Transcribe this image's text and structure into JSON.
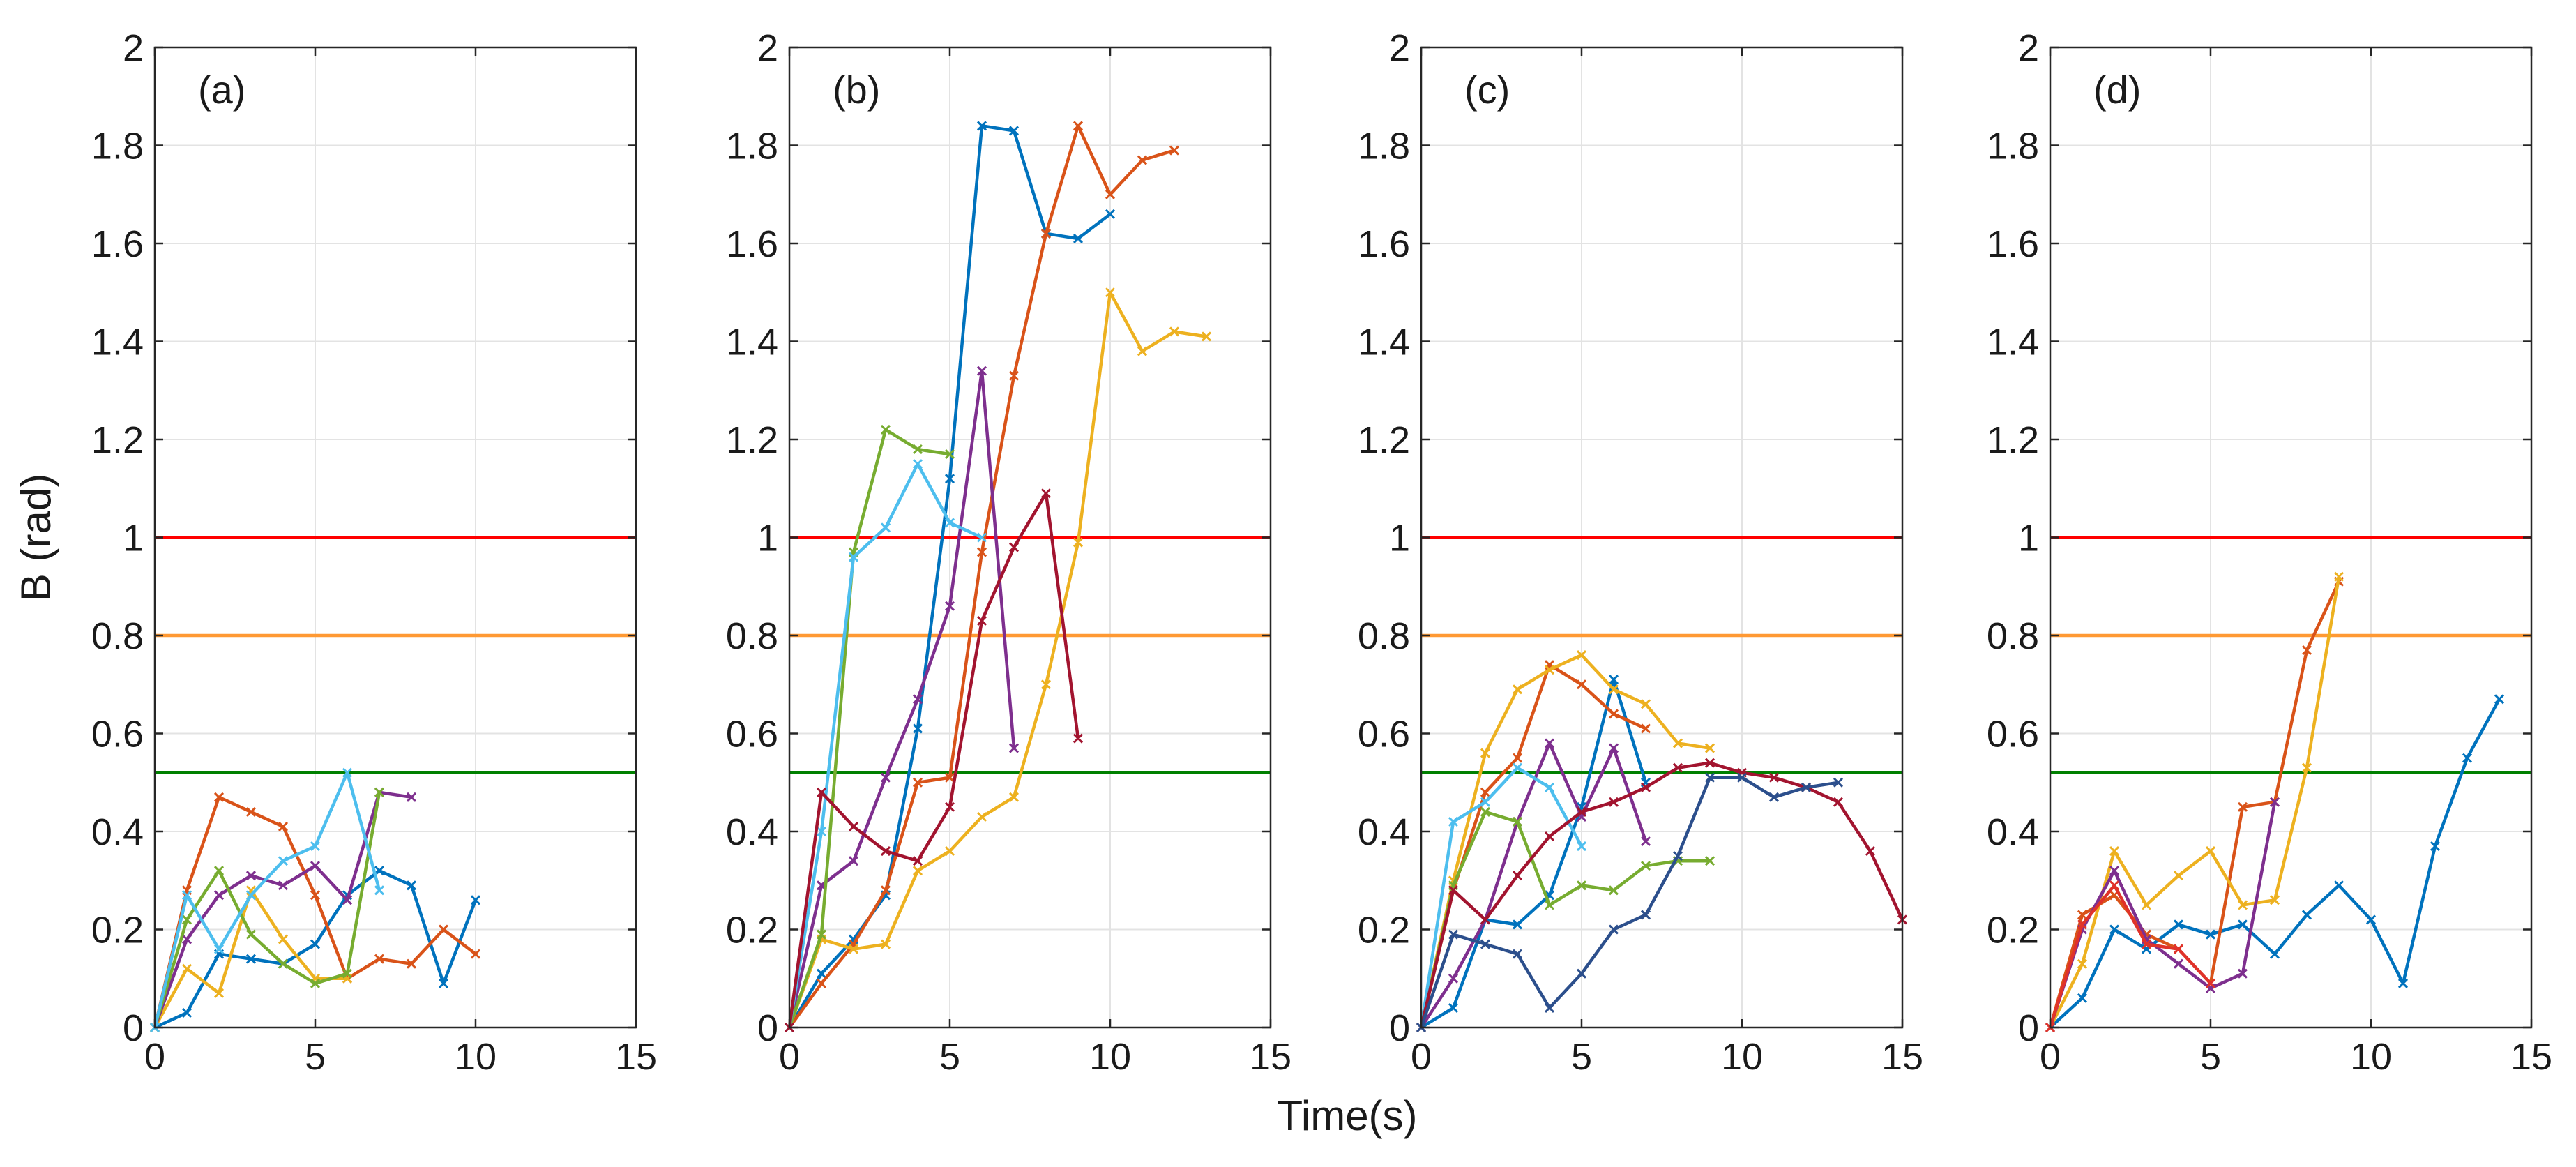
{
  "figure": {
    "ylabel": "B (rad)",
    "xlabel": "Time(s)"
  },
  "chart_data": [
    {
      "type": "line",
      "panel": "(a)",
      "xlim": [
        0,
        15
      ],
      "ylim": [
        0,
        2
      ],
      "xticks": [
        "0",
        "5",
        "10",
        "15"
      ],
      "yticks": [
        "0",
        "0.2",
        "0.4",
        "0.6",
        "0.8",
        "1",
        "1.2",
        "1.4",
        "1.6",
        "1.8",
        "2"
      ],
      "grid": true,
      "thresholds": [
        {
          "name": "red-threshold",
          "value": 1.0,
          "color": "#ff0000"
        },
        {
          "name": "orange-threshold",
          "value": 0.8,
          "color": "#ff9933"
        },
        {
          "name": "green-threshold",
          "value": 0.52,
          "color": "#008000"
        }
      ],
      "series": [
        {
          "name": "blue",
          "color": "#0072bd",
          "x": [
            0,
            1,
            2,
            3,
            4,
            5,
            6,
            7,
            8,
            9,
            10
          ],
          "y": [
            0,
            0.03,
            0.15,
            0.14,
            0.13,
            0.17,
            0.27,
            0.32,
            0.29,
            0.09,
            0.26
          ]
        },
        {
          "name": "orange",
          "color": "#d95319",
          "x": [
            0,
            1,
            2,
            3,
            4,
            5,
            6,
            7,
            8,
            9,
            10
          ],
          "y": [
            0,
            0.28,
            0.47,
            0.44,
            0.41,
            0.27,
            0.1,
            0.14,
            0.13,
            0.2,
            0.15
          ]
        },
        {
          "name": "yellow",
          "color": "#edb120",
          "x": [
            0,
            1,
            2,
            3,
            4,
            5,
            6
          ],
          "y": [
            0,
            0.12,
            0.07,
            0.28,
            0.18,
            0.1,
            0.1
          ]
        },
        {
          "name": "purple",
          "color": "#7e2f8e",
          "x": [
            0,
            1,
            2,
            3,
            4,
            5,
            6,
            7,
            8
          ],
          "y": [
            0,
            0.18,
            0.27,
            0.31,
            0.29,
            0.33,
            0.26,
            0.48,
            0.47
          ]
        },
        {
          "name": "green",
          "color": "#77ac30",
          "x": [
            0,
            1,
            2,
            3,
            4,
            5,
            6,
            7
          ],
          "y": [
            0,
            0.22,
            0.32,
            0.19,
            0.13,
            0.09,
            0.11,
            0.48
          ]
        },
        {
          "name": "cyan",
          "color": "#4dbeee",
          "x": [
            0,
            1,
            2,
            3,
            4,
            5,
            6,
            7
          ],
          "y": [
            0,
            0.27,
            0.16,
            0.27,
            0.34,
            0.37,
            0.52,
            0.28
          ]
        }
      ]
    },
    {
      "type": "line",
      "panel": "(b)",
      "xlim": [
        0,
        15
      ],
      "ylim": [
        0,
        2
      ],
      "xticks": [
        "0",
        "5",
        "10",
        "15"
      ],
      "yticks": [
        "0",
        "0.2",
        "0.4",
        "0.6",
        "0.8",
        "1",
        "1.2",
        "1.4",
        "1.6",
        "1.8",
        "2"
      ],
      "grid": true,
      "thresholds": [
        {
          "name": "red-threshold",
          "value": 1.0,
          "color": "#ff0000"
        },
        {
          "name": "orange-threshold",
          "value": 0.8,
          "color": "#ff9933"
        },
        {
          "name": "green-threshold",
          "value": 0.52,
          "color": "#008000"
        }
      ],
      "series": [
        {
          "name": "blue",
          "color": "#0072bd",
          "x": [
            0,
            1,
            2,
            3,
            4,
            5,
            6,
            7,
            8,
            9,
            10
          ],
          "y": [
            0,
            0.11,
            0.18,
            0.27,
            0.61,
            1.12,
            1.84,
            1.83,
            1.62,
            1.61,
            1.66
          ]
        },
        {
          "name": "orange",
          "color": "#d95319",
          "x": [
            0,
            1,
            2,
            3,
            4,
            5,
            6,
            7,
            8,
            9,
            10,
            11,
            12
          ],
          "y": [
            0,
            0.09,
            0.17,
            0.28,
            0.5,
            0.51,
            0.97,
            1.33,
            1.62,
            1.84,
            1.7,
            1.77,
            1.79
          ]
        },
        {
          "name": "yellow",
          "color": "#edb120",
          "x": [
            0,
            1,
            2,
            3,
            4,
            5,
            6,
            7,
            8,
            9,
            10,
            11,
            12,
            13
          ],
          "y": [
            0,
            0.18,
            0.16,
            0.17,
            0.32,
            0.36,
            0.43,
            0.47,
            0.7,
            0.99,
            1.5,
            1.38,
            1.42,
            1.41
          ]
        },
        {
          "name": "purple",
          "color": "#7e2f8e",
          "x": [
            0,
            1,
            2,
            3,
            4,
            5,
            6,
            7
          ],
          "y": [
            0,
            0.29,
            0.34,
            0.51,
            0.67,
            0.86,
            1.34,
            0.57
          ]
        },
        {
          "name": "green",
          "color": "#77ac30",
          "x": [
            0,
            1,
            2,
            3,
            4,
            5
          ],
          "y": [
            0,
            0.19,
            0.97,
            1.22,
            1.18,
            1.17
          ]
        },
        {
          "name": "cyan",
          "color": "#4dbeee",
          "x": [
            0,
            1,
            2,
            3,
            4,
            5,
            6
          ],
          "y": [
            0,
            0.4,
            0.96,
            1.02,
            1.15,
            1.03,
            1.0
          ]
        },
        {
          "name": "crimson",
          "color": "#a2142f",
          "x": [
            0,
            1,
            2,
            3,
            4,
            5,
            6,
            7,
            8,
            9
          ],
          "y": [
            0,
            0.48,
            0.41,
            0.36,
            0.34,
            0.45,
            0.83,
            0.98,
            1.09,
            0.59
          ]
        }
      ]
    },
    {
      "type": "line",
      "panel": "(c)",
      "xlim": [
        0,
        15
      ],
      "ylim": [
        0,
        2
      ],
      "xticks": [
        "0",
        "5",
        "10",
        "15"
      ],
      "yticks": [
        "0",
        "0.2",
        "0.4",
        "0.6",
        "0.8",
        "1",
        "1.2",
        "1.4",
        "1.6",
        "1.8",
        "2"
      ],
      "grid": true,
      "thresholds": [
        {
          "name": "red-threshold",
          "value": 1.0,
          "color": "#ff0000"
        },
        {
          "name": "orange-threshold",
          "value": 0.8,
          "color": "#ff9933"
        },
        {
          "name": "green-threshold",
          "value": 0.52,
          "color": "#008000"
        }
      ],
      "series": [
        {
          "name": "blue",
          "color": "#0072bd",
          "x": [
            0,
            1,
            2,
            3,
            4,
            5,
            6,
            7
          ],
          "y": [
            0,
            0.04,
            0.22,
            0.21,
            0.27,
            0.45,
            0.71,
            0.5
          ]
        },
        {
          "name": "orange",
          "color": "#d95319",
          "x": [
            0,
            1,
            2,
            3,
            4,
            5,
            6,
            7
          ],
          "y": [
            0,
            0.28,
            0.48,
            0.55,
            0.74,
            0.7,
            0.64,
            0.61
          ]
        },
        {
          "name": "yellow",
          "color": "#edb120",
          "x": [
            0,
            1,
            2,
            3,
            4,
            5,
            6,
            7,
            8,
            9
          ],
          "y": [
            0,
            0.3,
            0.56,
            0.69,
            0.73,
            0.76,
            0.69,
            0.66,
            0.58,
            0.57
          ]
        },
        {
          "name": "purple",
          "color": "#7e2f8e",
          "x": [
            0,
            1,
            2,
            3,
            4,
            5,
            6,
            7
          ],
          "y": [
            0,
            0.1,
            0.22,
            0.42,
            0.58,
            0.43,
            0.57,
            0.38
          ]
        },
        {
          "name": "green",
          "color": "#77ac30",
          "x": [
            0,
            1,
            2,
            3,
            4,
            5,
            6,
            7,
            8,
            9
          ],
          "y": [
            0,
            0.29,
            0.44,
            0.42,
            0.25,
            0.29,
            0.28,
            0.33,
            0.34,
            0.34
          ]
        },
        {
          "name": "cyan",
          "color": "#4dbeee",
          "x": [
            0,
            1,
            2,
            3,
            4,
            5
          ],
          "y": [
            0,
            0.42,
            0.46,
            0.53,
            0.49,
            0.37
          ]
        },
        {
          "name": "crimson",
          "color": "#a2142f",
          "x": [
            0,
            1,
            2,
            3,
            4,
            5,
            6,
            7,
            8,
            9,
            10,
            11,
            12,
            13,
            14,
            15
          ],
          "y": [
            0,
            0.28,
            0.22,
            0.31,
            0.39,
            0.44,
            0.46,
            0.49,
            0.53,
            0.54,
            0.52,
            0.51,
            0.49,
            0.46,
            0.36,
            0.22
          ]
        },
        {
          "name": "navy",
          "color": "#2c4f8c",
          "x": [
            0,
            1,
            2,
            3,
            4,
            5,
            6,
            7,
            8,
            9,
            10,
            11,
            12,
            13
          ],
          "y": [
            0,
            0.19,
            0.17,
            0.15,
            0.04,
            0.11,
            0.2,
            0.23,
            0.35,
            0.51,
            0.51,
            0.47,
            0.49,
            0.5
          ]
        }
      ]
    },
    {
      "type": "line",
      "panel": "(d)",
      "xlim": [
        0,
        15
      ],
      "ylim": [
        0,
        2
      ],
      "xticks": [
        "0",
        "5",
        "10",
        "15"
      ],
      "yticks": [
        "0",
        "0.2",
        "0.4",
        "0.6",
        "0.8",
        "1",
        "1.2",
        "1.4",
        "1.6",
        "1.8",
        "2"
      ],
      "grid": true,
      "thresholds": [
        {
          "name": "red-threshold",
          "value": 1.0,
          "color": "#ff0000"
        },
        {
          "name": "orange-threshold",
          "value": 0.8,
          "color": "#ff9933"
        },
        {
          "name": "green-threshold",
          "value": 0.52,
          "color": "#008000"
        }
      ],
      "series": [
        {
          "name": "blue",
          "color": "#0072bd",
          "x": [
            0,
            1,
            2,
            3,
            4,
            5,
            6,
            7,
            8,
            9,
            10,
            11,
            12,
            13,
            14
          ],
          "y": [
            0,
            0.06,
            0.2,
            0.16,
            0.21,
            0.19,
            0.21,
            0.15,
            0.23,
            0.29,
            0.22,
            0.09,
            0.37,
            0.55,
            0.67
          ]
        },
        {
          "name": "orange",
          "color": "#d95319",
          "x": [
            0,
            1,
            2,
            3,
            4,
            5,
            6,
            7,
            8,
            9
          ],
          "y": [
            0,
            0.23,
            0.27,
            0.19,
            0.16,
            0.09,
            0.45,
            0.46,
            0.77,
            0.91
          ]
        },
        {
          "name": "yellow",
          "color": "#edb120",
          "x": [
            0,
            1,
            2,
            3,
            4,
            5,
            6,
            7,
            8,
            9
          ],
          "y": [
            0,
            0.13,
            0.36,
            0.25,
            0.31,
            0.36,
            0.25,
            0.26,
            0.53,
            0.92
          ]
        },
        {
          "name": "purple",
          "color": "#7e2f8e",
          "x": [
            0,
            1,
            2,
            3,
            4,
            5,
            6,
            7
          ],
          "y": [
            0,
            0.2,
            0.32,
            0.18,
            0.13,
            0.08,
            0.11,
            0.46
          ]
        },
        {
          "name": "red",
          "color": "#e0322a",
          "x": [
            0,
            1,
            2,
            3,
            4,
            5
          ],
          "y": [
            0,
            0.21,
            0.29,
            0.17,
            0.16,
            0.09
          ]
        }
      ]
    }
  ]
}
